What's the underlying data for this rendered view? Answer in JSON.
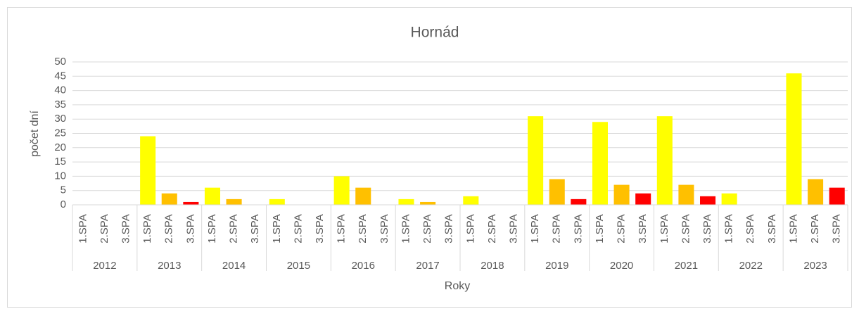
{
  "chart_data": {
    "type": "bar",
    "title": "Hornád",
    "x_label": "Roky",
    "y_label": "počet dní",
    "categories": [
      "2012",
      "2013",
      "2014",
      "2015",
      "2016",
      "2017",
      "2018",
      "2019",
      "2020",
      "2021",
      "2022",
      "2023"
    ],
    "series": [
      {
        "name": "1.SPA",
        "color": "#ffff00",
        "values": [
          0,
          24,
          6,
          2,
          10,
          2,
          3,
          31,
          29,
          31,
          4,
          46
        ]
      },
      {
        "name": "2.SPA",
        "color": "#ffc000",
        "values": [
          0,
          4,
          2,
          0,
          6,
          1,
          0,
          9,
          7,
          7,
          0,
          9
        ]
      },
      {
        "name": "3.SPA",
        "color": "#ff0000",
        "values": [
          0,
          1,
          0,
          0,
          0,
          0,
          0,
          2,
          4,
          3,
          0,
          6
        ]
      }
    ],
    "ylim": [
      0,
      50
    ],
    "yticks": [
      0,
      5,
      10,
      15,
      20,
      25,
      30,
      35,
      40,
      45,
      50
    ],
    "grid": true
  }
}
